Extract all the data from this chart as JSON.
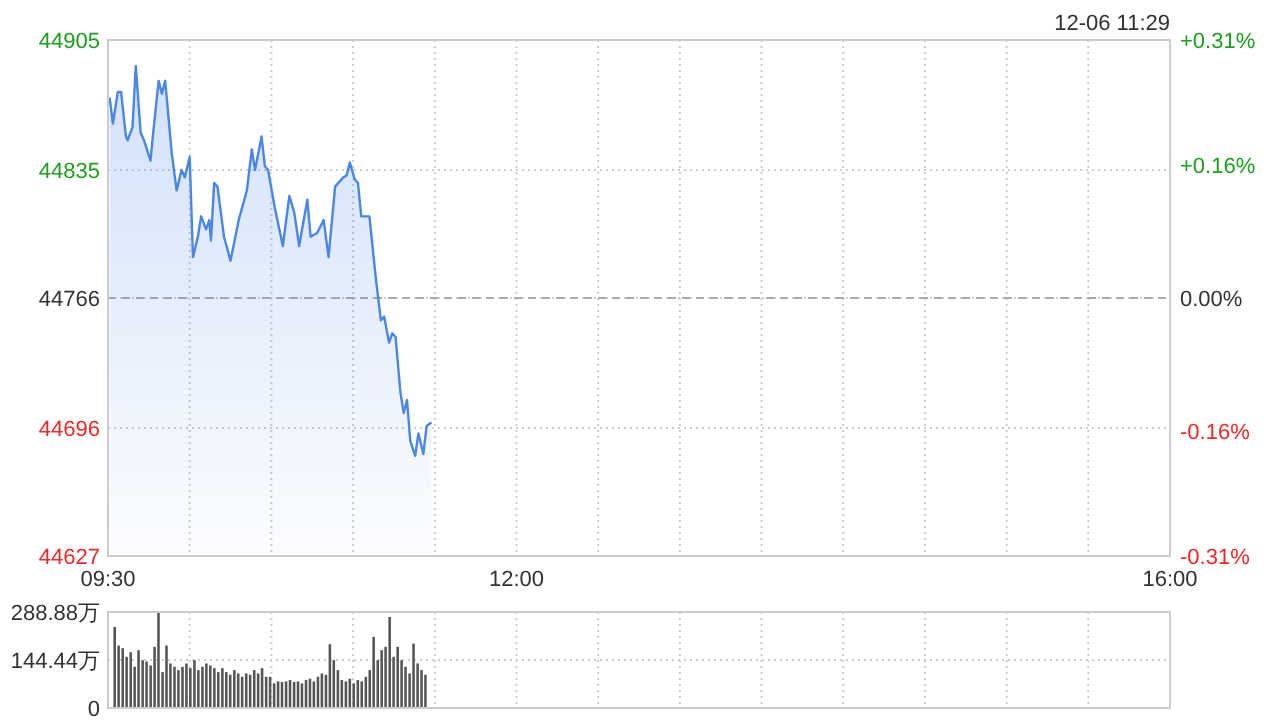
{
  "chart_data": [
    {
      "type": "area",
      "x": [
        9.51,
        9.53,
        9.56,
        9.58,
        9.61,
        9.62,
        9.65,
        9.67,
        9.7,
        9.72,
        9.76,
        9.78,
        9.81,
        9.83,
        9.85,
        9.89,
        9.92,
        9.95,
        9.97,
        10.0,
        10.02,
        10.05,
        10.07,
        10.1,
        10.12,
        10.13,
        10.15,
        10.17,
        10.21,
        10.25,
        10.3,
        10.35,
        10.38,
        10.4,
        10.44,
        10.46,
        10.48,
        10.52,
        10.57,
        10.61,
        10.64,
        10.67,
        10.72,
        10.74,
        10.78,
        10.82,
        10.85,
        10.89,
        10.94,
        10.96,
        10.98,
        11.01,
        11.03,
        11.05,
        11.1,
        11.14,
        11.17,
        11.19,
        11.22,
        11.24,
        11.26,
        11.29,
        11.31,
        11.33,
        11.35,
        11.38,
        11.4,
        11.43,
        11.45,
        11.48
      ],
      "series": [
        {
          "color": "#4a86e8",
          "values": [
            44874,
            44860,
            44877,
            44877,
            44853,
            44851,
            44858,
            44891,
            44855,
            44851,
            44840,
            44858,
            44883,
            44876,
            44883,
            44844,
            44824,
            44835,
            44831,
            44842,
            44788,
            44799,
            44810,
            44803,
            44808,
            44797,
            44828,
            44826,
            44799,
            44786,
            44808,
            44824,
            44846,
            44835,
            44853,
            44837,
            44835,
            44815,
            44794,
            44821,
            44812,
            44794,
            44819,
            44799,
            44801,
            44808,
            44788,
            44826,
            44831,
            44832,
            44839,
            44830,
            44828,
            44810,
            44810,
            44776,
            44754,
            44756,
            44742,
            44747,
            44745,
            44715,
            44704,
            44711,
            44689,
            44681,
            44693,
            44682,
            44697,
            44699
          ]
        }
      ],
      "xlim": [
        9.5,
        16
      ],
      "xticks": [
        {
          "value": 9.5,
          "label": "09:30"
        },
        {
          "value": 10,
          "label": null
        },
        {
          "value": 10.5,
          "label": null
        },
        {
          "value": 11,
          "label": null
        },
        {
          "value": 11.5,
          "label": null
        },
        {
          "value": 12,
          "label": "12:00"
        },
        {
          "value": 12.5,
          "label": null
        },
        {
          "value": 13,
          "label": null
        },
        {
          "value": 13.5,
          "label": null
        },
        {
          "value": 14,
          "label": null
        },
        {
          "value": 14.5,
          "label": null
        },
        {
          "value": 15,
          "label": null
        },
        {
          "value": 15.5,
          "label": null
        },
        {
          "value": 16,
          "label": "16:00"
        }
      ],
      "ylim": [
        44627,
        44905
      ],
      "yticks": [
        44627,
        44696,
        44766,
        44835,
        44905
      ],
      "y2lim": [
        -0.31,
        0.31
      ],
      "y2ticks": [
        {
          "value": -0.31,
          "label": "-0.31%"
        },
        {
          "value": -0.16,
          "label": "-0.16%"
        },
        {
          "value": 0,
          "label": "0.00%"
        },
        {
          "value": 0.16,
          "label": "+0.16%"
        },
        {
          "value": 0.31,
          "label": "+0.31%"
        }
      ],
      "grid": true,
      "ref_lines": [
        {
          "axis": "y",
          "value": 44766,
          "line_style": "dashed",
          "color": "#aaaaaa"
        }
      ],
      "annotations": [
        "12-06 11:29"
      ]
    },
    {
      "type": "bar",
      "x": [
        9.541,
        9.565,
        9.59,
        9.614,
        9.639,
        9.663,
        9.687,
        9.712,
        9.736,
        9.761,
        9.785,
        9.809,
        9.834,
        9.858,
        9.882,
        9.907,
        9.931,
        9.956,
        9.98,
        10.004,
        10.029,
        10.053,
        10.078,
        10.102,
        10.126,
        10.151,
        10.175,
        10.2,
        10.224,
        10.248,
        10.273,
        10.297,
        10.321,
        10.346,
        10.37,
        10.395,
        10.419,
        10.443,
        10.468,
        10.492,
        10.517,
        10.541,
        10.565,
        10.59,
        10.614,
        10.639,
        10.663,
        10.687,
        10.712,
        10.736,
        10.76,
        10.785,
        10.809,
        10.834,
        10.858,
        10.882,
        10.907,
        10.931,
        10.956,
        10.98,
        11.004,
        11.029,
        11.053,
        11.078,
        11.102,
        11.126,
        11.151,
        11.175,
        11.199,
        11.224,
        11.248,
        11.273,
        11.297,
        11.321,
        11.346,
        11.37,
        11.395,
        11.419,
        11.443
      ],
      "series": [
        {
          "color": "#555555",
          "values": [
            244,
            188,
            180,
            154,
            168,
            124,
            174,
            144,
            140,
            128,
            184,
            288,
            108,
            188,
            134,
            124,
            114,
            124,
            134,
            120,
            144,
            114,
            124,
            134,
            128,
            120,
            108,
            120,
            108,
            100,
            114,
            104,
            94,
            104,
            100,
            114,
            104,
            120,
            94,
            94,
            74,
            80,
            78,
            80,
            84,
            78,
            80,
            74,
            84,
            88,
            80,
            94,
            104,
            100,
            192,
            144,
            114,
            84,
            80,
            88,
            74,
            84,
            80,
            94,
            114,
            214,
            144,
            174,
            184,
            274,
            154,
            184,
            144,
            124,
            104,
            194,
            134,
            114,
            100
          ]
        }
      ],
      "xlim": [
        9.5,
        16
      ],
      "xticks": [
        {
          "value": 9.5,
          "label": null
        },
        {
          "value": 10,
          "label": null
        },
        {
          "value": 10.5,
          "label": null
        },
        {
          "value": 11,
          "label": null
        },
        {
          "value": 11.5,
          "label": null
        },
        {
          "value": 12,
          "label": null
        },
        {
          "value": 12.5,
          "label": null
        },
        {
          "value": 13,
          "label": null
        },
        {
          "value": 13.5,
          "label": null
        },
        {
          "value": 14,
          "label": null
        },
        {
          "value": 14.5,
          "label": null
        },
        {
          "value": 15,
          "label": null
        },
        {
          "value": 15.5,
          "label": null
        },
        {
          "value": 16,
          "label": null
        }
      ],
      "ylim": [
        0,
        288.88
      ],
      "yticks": [
        0,
        {
          "value": 144.44,
          "label": "144.44万"
        },
        {
          "value": 288.88,
          "label": "288.88万"
        }
      ],
      "grid": true,
      "tick_labels": "y"
    }
  ]
}
